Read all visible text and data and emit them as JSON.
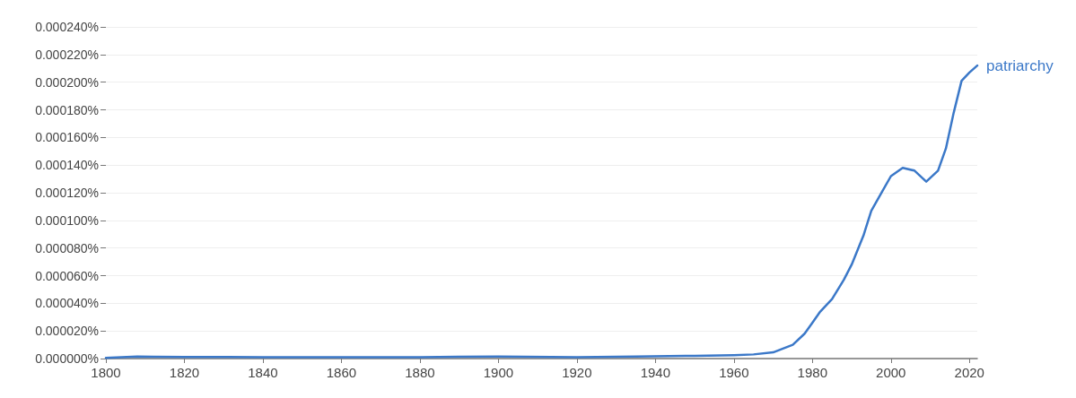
{
  "chart_data": {
    "type": "line",
    "x": [
      1800,
      1808,
      1812,
      1820,
      1840,
      1860,
      1880,
      1900,
      1920,
      1935,
      1950,
      1960,
      1965,
      1970,
      1975,
      1978,
      1980,
      1982,
      1985,
      1988,
      1990,
      1993,
      1995,
      1998,
      2000,
      2003,
      2006,
      2009,
      2012,
      2014,
      2016,
      2018,
      2020,
      2022
    ],
    "series": [
      {
        "name": "patriarchy",
        "color": "#3b78c8",
        "values": [
          5e-07,
          1.5e-06,
          1.3e-06,
          1.2e-06,
          1e-06,
          1e-06,
          1e-06,
          1.5e-06,
          1e-06,
          1.5e-06,
          2e-06,
          2.5e-06,
          3e-06,
          4.5e-06,
          1e-05,
          1.8e-05,
          2.6e-05,
          3.4e-05,
          4.3e-05,
          5.7e-05,
          6.8e-05,
          8.9e-05,
          0.000107,
          0.000122,
          0.000132,
          0.000138,
          0.000136,
          0.000128,
          0.000136,
          0.000152,
          0.000178,
          0.000201,
          0.000207,
          0.000212
        ]
      }
    ],
    "xlim": [
      1800,
      2022
    ],
    "xticks": [
      1800,
      1820,
      1840,
      1860,
      1880,
      1900,
      1920,
      1940,
      1960,
      1980,
      2000,
      2020
    ],
    "ylim": [
      0,
      0.00024
    ],
    "yticks": [
      {
        "value": 0,
        "label": "0.000000%"
      },
      {
        "value": 2e-05,
        "label": "0.000020%"
      },
      {
        "value": 4e-05,
        "label": "0.000040%"
      },
      {
        "value": 6e-05,
        "label": "0.000060%"
      },
      {
        "value": 8e-05,
        "label": "0.000080%"
      },
      {
        "value": 0.0001,
        "label": "0.000100%"
      },
      {
        "value": 0.00012,
        "label": "0.000120%"
      },
      {
        "value": 0.00014,
        "label": "0.000140%"
      },
      {
        "value": 0.00016,
        "label": "0.000160%"
      },
      {
        "value": 0.00018,
        "label": "0.000180%"
      },
      {
        "value": 0.0002,
        "label": "0.000200%"
      },
      {
        "value": 0.00022,
        "label": "0.000220%"
      },
      {
        "value": 0.00024,
        "label": "0.000240%"
      }
    ],
    "grid": "y",
    "legend": false,
    "marker": "none",
    "line_style": "solid"
  }
}
